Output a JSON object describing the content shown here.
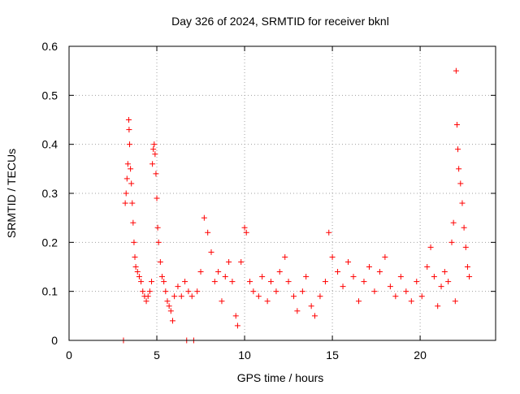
{
  "chart_data": {
    "type": "scatter",
    "title": "Day 326 of 2024, SRMTID for receiver bknl",
    "xlabel": "GPS time / hours",
    "ylabel": "SRMTID / TECUs",
    "xlim": [
      0,
      24.3
    ],
    "ylim": [
      0,
      0.6
    ],
    "xticks": [
      0,
      5,
      10,
      15,
      20
    ],
    "xtick_labels": [
      "0",
      "5",
      "10",
      "15",
      "20"
    ],
    "yticks": [
      0,
      0.1,
      0.2,
      0.3,
      0.4,
      0.5,
      0.6
    ],
    "ytick_labels": [
      "0",
      "0.1",
      "0.2",
      "0.3",
      "0.4",
      "0.5",
      "0.6"
    ],
    "grid": true,
    "marker": "+",
    "marker_color": "#ff0000",
    "series": [
      {
        "name": "SRMTID",
        "points": [
          [
            3.1,
            0.0
          ],
          [
            6.7,
            0.0
          ],
          [
            7.1,
            0.0
          ],
          [
            3.2,
            0.28
          ],
          [
            3.25,
            0.3
          ],
          [
            3.3,
            0.33
          ],
          [
            3.35,
            0.36
          ],
          [
            3.4,
            0.45
          ],
          [
            3.42,
            0.43
          ],
          [
            3.45,
            0.4
          ],
          [
            3.5,
            0.35
          ],
          [
            3.55,
            0.32
          ],
          [
            3.6,
            0.28
          ],
          [
            3.65,
            0.24
          ],
          [
            3.7,
            0.2
          ],
          [
            3.75,
            0.17
          ],
          [
            3.8,
            0.15
          ],
          [
            3.9,
            0.14
          ],
          [
            4.0,
            0.13
          ],
          [
            4.1,
            0.12
          ],
          [
            4.2,
            0.1
          ],
          [
            4.3,
            0.09
          ],
          [
            4.4,
            0.08
          ],
          [
            4.5,
            0.09
          ],
          [
            4.6,
            0.1
          ],
          [
            4.7,
            0.12
          ],
          [
            4.75,
            0.36
          ],
          [
            4.8,
            0.39
          ],
          [
            4.85,
            0.4
          ],
          [
            4.9,
            0.38
          ],
          [
            4.95,
            0.34
          ],
          [
            5.0,
            0.29
          ],
          [
            5.05,
            0.23
          ],
          [
            5.1,
            0.2
          ],
          [
            5.2,
            0.16
          ],
          [
            5.3,
            0.13
          ],
          [
            5.4,
            0.12
          ],
          [
            5.5,
            0.1
          ],
          [
            5.6,
            0.08
          ],
          [
            5.7,
            0.07
          ],
          [
            5.8,
            0.06
          ],
          [
            5.9,
            0.04
          ],
          [
            6.0,
            0.09
          ],
          [
            6.2,
            0.11
          ],
          [
            6.4,
            0.09
          ],
          [
            6.6,
            0.12
          ],
          [
            6.8,
            0.1
          ],
          [
            7.0,
            0.09
          ],
          [
            7.3,
            0.1
          ],
          [
            7.5,
            0.14
          ],
          [
            7.7,
            0.25
          ],
          [
            7.9,
            0.22
          ],
          [
            8.1,
            0.18
          ],
          [
            8.3,
            0.12
          ],
          [
            8.5,
            0.14
          ],
          [
            8.7,
            0.08
          ],
          [
            8.9,
            0.13
          ],
          [
            9.1,
            0.16
          ],
          [
            9.3,
            0.12
          ],
          [
            9.5,
            0.05
          ],
          [
            9.6,
            0.03
          ],
          [
            9.8,
            0.16
          ],
          [
            10.0,
            0.23
          ],
          [
            10.1,
            0.22
          ],
          [
            10.3,
            0.12
          ],
          [
            10.5,
            0.1
          ],
          [
            10.8,
            0.09
          ],
          [
            11.0,
            0.13
          ],
          [
            11.3,
            0.08
          ],
          [
            11.5,
            0.12
          ],
          [
            11.8,
            0.1
          ],
          [
            12.0,
            0.14
          ],
          [
            12.3,
            0.17
          ],
          [
            12.5,
            0.12
          ],
          [
            12.8,
            0.09
          ],
          [
            13.0,
            0.06
          ],
          [
            13.3,
            0.1
          ],
          [
            13.5,
            0.13
          ],
          [
            13.8,
            0.07
          ],
          [
            14.0,
            0.05
          ],
          [
            14.3,
            0.09
          ],
          [
            14.6,
            0.12
          ],
          [
            14.8,
            0.22
          ],
          [
            15.0,
            0.17
          ],
          [
            15.3,
            0.14
          ],
          [
            15.6,
            0.11
          ],
          [
            15.9,
            0.16
          ],
          [
            16.2,
            0.13
          ],
          [
            16.5,
            0.08
          ],
          [
            16.8,
            0.12
          ],
          [
            17.1,
            0.15
          ],
          [
            17.4,
            0.1
          ],
          [
            17.7,
            0.14
          ],
          [
            18.0,
            0.17
          ],
          [
            18.3,
            0.11
          ],
          [
            18.6,
            0.09
          ],
          [
            18.9,
            0.13
          ],
          [
            19.2,
            0.1
          ],
          [
            19.5,
            0.08
          ],
          [
            19.8,
            0.12
          ],
          [
            20.1,
            0.09
          ],
          [
            20.4,
            0.15
          ],
          [
            20.6,
            0.19
          ],
          [
            20.8,
            0.13
          ],
          [
            21.0,
            0.07
          ],
          [
            21.2,
            0.11
          ],
          [
            21.4,
            0.14
          ],
          [
            21.6,
            0.12
          ],
          [
            21.8,
            0.2
          ],
          [
            21.9,
            0.24
          ],
          [
            22.0,
            0.08
          ],
          [
            22.05,
            0.55
          ],
          [
            22.1,
            0.44
          ],
          [
            22.15,
            0.39
          ],
          [
            22.2,
            0.35
          ],
          [
            22.3,
            0.32
          ],
          [
            22.4,
            0.28
          ],
          [
            22.5,
            0.23
          ],
          [
            22.6,
            0.19
          ],
          [
            22.7,
            0.15
          ],
          [
            22.8,
            0.13
          ]
        ]
      }
    ]
  }
}
